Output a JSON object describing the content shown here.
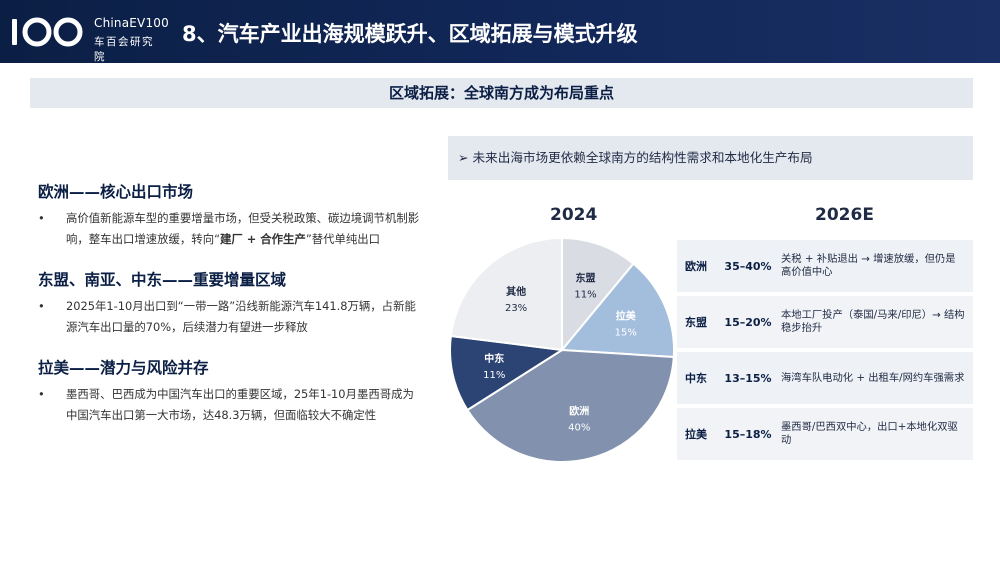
{
  "header": {
    "logo_text_en": "ChinaEV100",
    "logo_text_cn": "车百会研究院",
    "title": "8、汽车产业出海规模跃升、区域拓展与模式升级"
  },
  "subtitle": "区域拓展：全球南方成为布局重点",
  "regions": [
    {
      "title": "欧洲——核心出口市场",
      "bullet": "•",
      "text_before": "高价值新能源车型的重要增量市场，但受关税政策、碳边境调节机制影响，整车出口增速放缓，转向“",
      "text_bold": "建厂 + 合作生产",
      "text_after": "”替代单纯出口"
    },
    {
      "title": "东盟、南亚、中东——重要增量区域",
      "bullet": "•",
      "text": "2025年1-10月出口到“一带一路”沿线新能源汽车141.8万辆，占新能源汽车出口量的70%，后续潜力有望进一步释放"
    },
    {
      "title": "拉美——潜力与风险并存",
      "bullet": "•",
      "text": "墨西哥、巴西成为中国汽车出口的重要区域，25年1-10月墨西哥成为中国汽车出口第一大市场，达48.3万辆，但面临较大不确定性"
    }
  ],
  "right_banner": "➢ 未来出海市场更依赖全球南方的结构性需求和本地化生产布局",
  "chart_data": {
    "type": "pie",
    "title": "2024",
    "slices": [
      {
        "label": "东盟",
        "value": 11,
        "value_label": "11%",
        "color": "#d9dce3"
      },
      {
        "label": "拉美",
        "value": 15,
        "value_label": "15%",
        "color": "#a3bddd"
      },
      {
        "label": "欧洲",
        "value": 40,
        "value_label": "40%",
        "color": "#8291ad"
      },
      {
        "label": "中东",
        "value": 11,
        "value_label": "11%",
        "color": "#2c4474"
      },
      {
        "label": "其他",
        "value": 23,
        "value_label": "23%",
        "color": "#eceef2"
      }
    ]
  },
  "forecast": {
    "title": "2026E",
    "rows": [
      {
        "region": "欧洲",
        "range": "35–40%",
        "desc": "关税 + 补贴退出 → 增速放缓，但仍是高价值中心"
      },
      {
        "region": "东盟",
        "range": "15–20%",
        "desc": "本地工厂投产（泰国/马来/印尼）→ 结构稳步抬升"
      },
      {
        "region": "中东",
        "range": "13–15%",
        "desc": "海湾车队电动化 + 出租车/网约车强需求"
      },
      {
        "region": "拉美",
        "range": "15–18%",
        "desc": "墨西哥/巴西双中心，出口+本地化双驱动"
      }
    ]
  }
}
